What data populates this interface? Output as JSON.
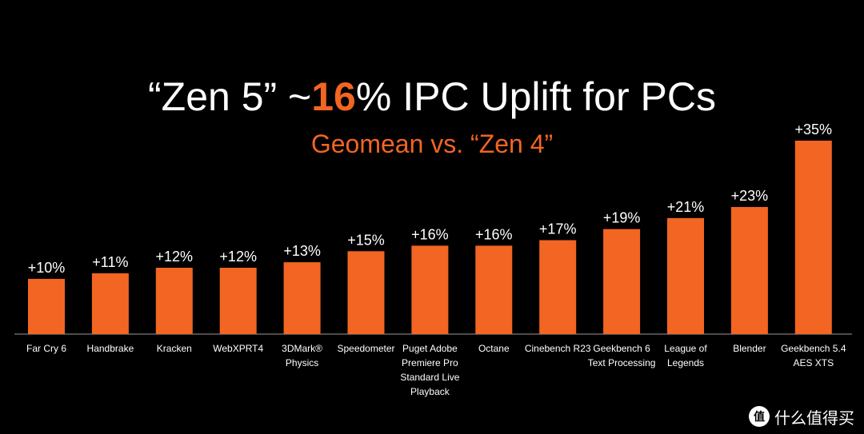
{
  "title": {
    "prefix": "“Zen 5” ~",
    "accent": "16",
    "suffix": "% IPC Uplift for PCs"
  },
  "subtitle": "Geomean  vs. “Zen 4”",
  "watermark": {
    "logo_glyph": "值",
    "text": "什么值得买"
  },
  "colors": {
    "background": "#000000",
    "bar": "#f26522",
    "text": "#ffffff",
    "accent": "#f26522"
  },
  "chart_data": {
    "type": "bar",
    "categories": [
      [
        "Far Cry 6"
      ],
      [
        "Handbrake"
      ],
      [
        "Kracken"
      ],
      [
        "WebXPRT4"
      ],
      [
        "3DMark®",
        "Physics"
      ],
      [
        "Speedometer"
      ],
      [
        "Puget Adobe",
        "Premiere Pro",
        "Standard Live",
        "Playback"
      ],
      [
        "Octane"
      ],
      [
        "Cinebench R23"
      ],
      [
        "Geekbench 6",
        "Text Processing"
      ],
      [
        "League of",
        "Legends"
      ],
      [
        "Blender"
      ],
      [
        "Geekbench 5.4",
        "AES XTS"
      ]
    ],
    "values": [
      10,
      11,
      12,
      12,
      13,
      15,
      16,
      16,
      17,
      19,
      21,
      23,
      35
    ],
    "data_labels": [
      "+10%",
      "+11%",
      "+12%",
      "+12%",
      "+13%",
      "+15%",
      "+16%",
      "+16%",
      "+17%",
      "+19%",
      "+21%",
      "+23%",
      "+35%"
    ],
    "ylim": [
      0,
      35
    ],
    "grid": false,
    "legend": "none"
  }
}
